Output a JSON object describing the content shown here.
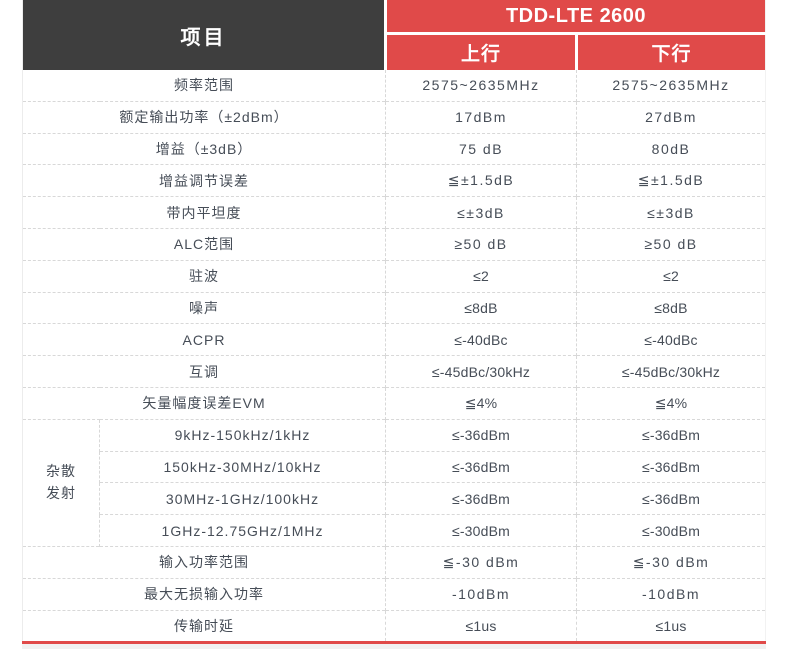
{
  "colors": {
    "header_dark": "#3e3e3e",
    "header_red": "#e04a49",
    "body_text": "#464d57",
    "dash_border": "#d8d8d8",
    "bottom_rule": "#e04a49"
  },
  "table": {
    "header": {
      "item_label": "项目",
      "group_label": "TDD-LTE 2600",
      "col_uplink": "上行",
      "col_downlink": "下行"
    },
    "rows": [
      {
        "label": "频率范围",
        "up": "2575~2635MHz",
        "down": "2575~2635MHz"
      },
      {
        "label": "额定输出功率（±2dBm）",
        "up": "17dBm",
        "down": "27dBm"
      },
      {
        "label": "增益（±3dB）",
        "up": "75 dB",
        "down": "80dB"
      },
      {
        "label": "增益调节误差",
        "up": "≦±1.5dB",
        "down": "≦±1.5dB"
      },
      {
        "label": "带内平坦度",
        "up": "≤±3dB",
        "down": "≤±3dB"
      },
      {
        "label": "ALC范围",
        "up": "≥50 dB",
        "down": "≥50 dB"
      },
      {
        "label": "驻波",
        "up": "≤2",
        "down": "≤2"
      },
      {
        "label": "噪声",
        "up": "≤8dB",
        "down": "≤8dB"
      },
      {
        "label": "ACPR",
        "up": "≤-40dBc",
        "down": "≤-40dBc"
      },
      {
        "label": "互调",
        "up": "≤-45dBc/30kHz",
        "down": "≤-45dBc/30kHz"
      },
      {
        "label": "矢量幅度误差EVM",
        "up": "≦4%",
        "down": "≦4%"
      }
    ],
    "spurious_group": {
      "label_line1": "杂散",
      "label_line2": "发射",
      "rows": [
        {
          "label": "9kHz-150kHz/1kHz",
          "up": "≤-36dBm",
          "down": "≤-36dBm"
        },
        {
          "label": "150kHz-30MHz/10kHz",
          "up": "≤-36dBm",
          "down": "≤-36dBm"
        },
        {
          "label": "30MHz-1GHz/100kHz",
          "up": "≤-36dBm",
          "down": "≤-36dBm"
        },
        {
          "label": "1GHz-12.75GHz/1MHz",
          "up": "≤-30dBm",
          "down": "≤-30dBm"
        }
      ]
    },
    "bottom_rows": [
      {
        "label": "输入功率范围",
        "up": "≦-30 dBm",
        "down": "≦-30 dBm"
      },
      {
        "label": "最大无损输入功率",
        "up": "-10dBm",
        "down": "-10dBm"
      },
      {
        "label": "传输时延",
        "up": "≤1us",
        "down": "≤1us"
      }
    ]
  }
}
